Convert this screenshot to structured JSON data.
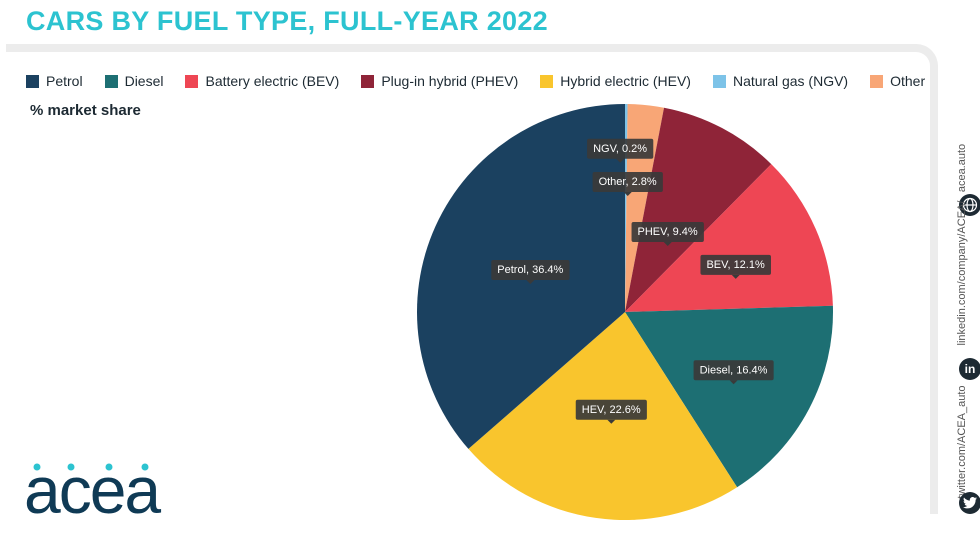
{
  "title": "CARS BY FUEL TYPE, FULL-YEAR 2022",
  "subtitle": "% market share",
  "chart_data": {
    "type": "pie",
    "title": "CARS BY FUEL TYPE, FULL-YEAR 2022",
    "subtitle": "% market share",
    "legend_position": "top",
    "slices": [
      {
        "name": "Petrol",
        "value": 36.4,
        "color": "#1b4160",
        "label": "Petrol, 36.4%"
      },
      {
        "name": "Diesel",
        "value": 16.4,
        "color": "#1d6f73",
        "label": "Diesel, 16.4%"
      },
      {
        "name": "Battery electric (BEV)",
        "value": 12.1,
        "color": "#ee4654",
        "label": "BEV, 12.1%"
      },
      {
        "name": "Plug-in hybrid (PHEV)",
        "value": 9.4,
        "color": "#8f2438",
        "label": "PHEV, 9.4%"
      },
      {
        "name": "Hybrid electric (HEV)",
        "value": 22.6,
        "color": "#f9c52d",
        "label": "HEV, 22.6%"
      },
      {
        "name": "Natural gas (NGV)",
        "value": 0.2,
        "color": "#7dc3e8",
        "label": "NGV, 0.2%"
      },
      {
        "name": "Other",
        "value": 2.8,
        "color": "#f8a676",
        "label": "Other, 2.8%"
      }
    ]
  },
  "logo": {
    "text": "acea"
  },
  "social": {
    "website": "acea.auto",
    "linkedin": "linkedin.com/company/ACEA/",
    "twitter": "twitter.com/ACEA_auto"
  },
  "colors": {
    "title": "#2cc3d0",
    "tooltip_bg": "#3a3a3a"
  }
}
